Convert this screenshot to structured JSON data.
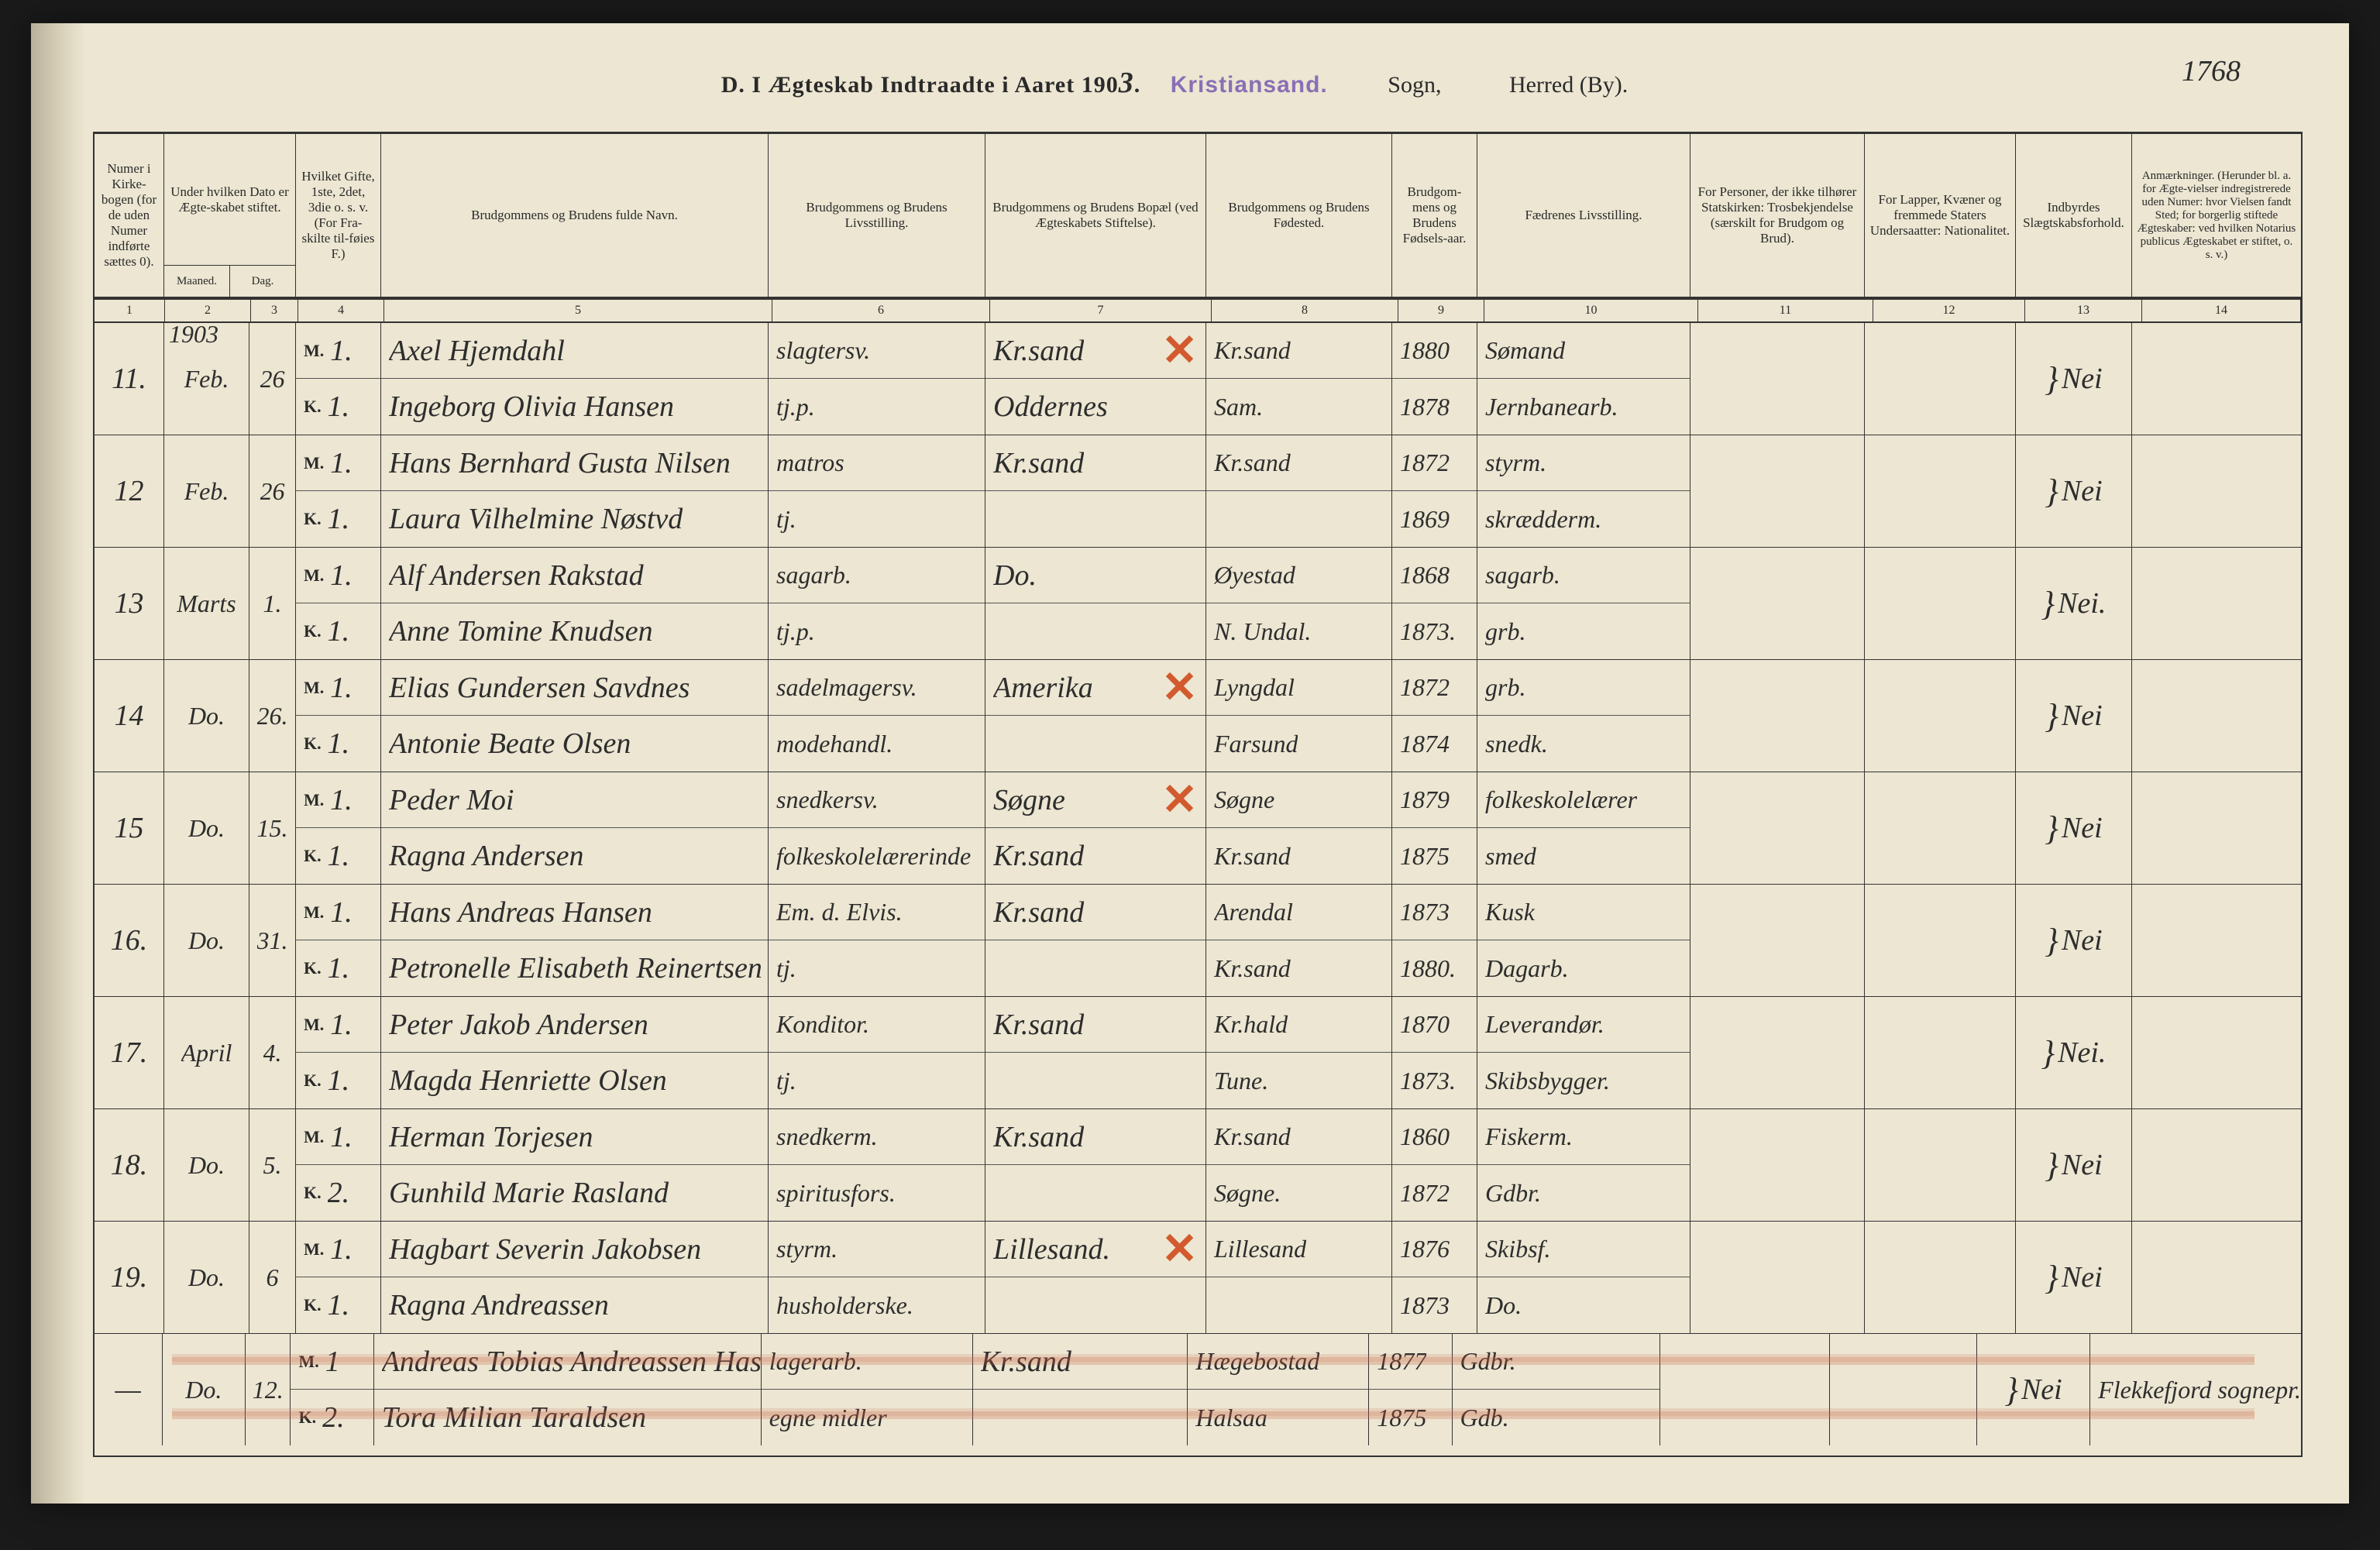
{
  "title": {
    "heading_prefix": "D.  I Ægteskab Indtraadte i Aaret 190",
    "year_digit": "3",
    "stamp": "Kristiansand.",
    "sogn_label": "Sogn,",
    "herred_label": "Herred (By)."
  },
  "page_number": "1768",
  "colors": {
    "paper": "#ece6d2",
    "ink": "#2d2d2d",
    "print": "#2a2a2a",
    "stamp": "#8a6fb5",
    "red": "#d25a2e",
    "rule": "#333333"
  },
  "header": {
    "c1": "Numer i Kirke-bogen (for de uden Numer indførte sættes 0).",
    "c2_3_top": "Under hvilken Dato er Ægte-skabet stiftet.",
    "c2_bot": "Maaned.",
    "c3_bot": "Dag.",
    "c4": "Hvilket Gifte, 1ste, 2det, 3die o. s. v. (For Fra-skilte til-føies F.)",
    "c5": "Brudgommens og Brudens fulde Navn.",
    "c6": "Brudgommens og Brudens Livsstilling.",
    "c7": "Brudgommens og Brudens Bopæl (ved Ægteskabets Stiftelse).",
    "c8": "Brudgommens og Brudens Fødested.",
    "c9": "Brudgom-mens og Brudens Fødsels-aar.",
    "c10": "Fædrenes Livsstilling.",
    "c11": "For Personer, der ikke tilhører Statskirken: Trosbekjendelse (særskilt for Brudgom og Brud).",
    "c12": "For Lapper, Kvæner og fremmede Staters Undersaatter: Nationalitet.",
    "c13": "Indbyrdes Slægtskabsforhold.",
    "c14": "Anmærkninger. (Herunder bl. a. for Ægte-vielser indregistrerede uden Numer: hvor Vielsen fandt Sted; for borgerlig stiftede Ægteskaber: ved hvilken Notarius publicus Ægteskabet er stiftet, o. s. v.)"
  },
  "colnums": [
    "1",
    "2",
    "3",
    "4",
    "5",
    "6",
    "7",
    "8",
    "9",
    "10",
    "11",
    "12",
    "13",
    "14"
  ],
  "year_written": "1903",
  "mk": {
    "m": "M.",
    "k": "K."
  },
  "entries": [
    {
      "no": "11.",
      "month": "Feb.",
      "day": "26",
      "groom": {
        "gifte": "1.",
        "name": "Axel Hjemdahl",
        "occ": "slagtersv.",
        "res": "Kr.sand",
        "born_place": "Kr.sand",
        "born_year": "1880",
        "father": "Sømand"
      },
      "bride": {
        "gifte": "1.",
        "name": "Ingeborg Olivia Hansen",
        "occ": "tj.p.",
        "res": "Oddernes",
        "res_x": true,
        "born_place": "Sam.",
        "born_year": "1878",
        "father": "Jernbanearb."
      },
      "slaegt": "Nei"
    },
    {
      "no": "12",
      "month": "Feb.",
      "day": "26",
      "groom": {
        "gifte": "1.",
        "name": "Hans Bernhard Gusta Nilsen",
        "occ": "matros",
        "res": "Kr.sand",
        "born_place": "Kr.sand",
        "born_year": "1872",
        "father": "styrm."
      },
      "bride": {
        "gifte": "1.",
        "name": "Laura Vilhelmine Nøstvd",
        "occ": "tj.",
        "res": "",
        "born_place": "",
        "born_year": "1869",
        "father": "skrædderm."
      },
      "slaegt": "Nei"
    },
    {
      "no": "13",
      "month": "Marts",
      "day": "1.",
      "groom": {
        "gifte": "1.",
        "name": "Alf Andersen Rakstad",
        "occ": "sagarb.",
        "res": "Do.",
        "born_place": "Øyestad",
        "born_year": "1868",
        "father": "sagarb."
      },
      "bride": {
        "gifte": "1.",
        "name": "Anne Tomine Knudsen",
        "occ": "tj.p.",
        "res": "",
        "born_place": "N. Undal.",
        "born_year": "1873.",
        "father": "grb."
      },
      "slaegt": "Nei."
    },
    {
      "no": "14",
      "month": "Do.",
      "day": "26.",
      "groom": {
        "gifte": "1.",
        "name": "Elias Gundersen Savdnes",
        "occ": "sadelmagersv.",
        "res": "Amerika",
        "res_x": true,
        "born_place": "Lyngdal",
        "born_year": "1872",
        "father": "grb."
      },
      "bride": {
        "gifte": "1.",
        "name": "Antonie Beate Olsen",
        "occ": "modehandl.",
        "res": "",
        "res_x": true,
        "born_place": "Farsund",
        "born_year": "1874",
        "father": "snedk."
      },
      "slaegt": "Nei"
    },
    {
      "no": "15",
      "month": "Do.",
      "day": "15.",
      "groom": {
        "gifte": "1.",
        "name": "Peder Moi",
        "occ": "snedkersv.",
        "res": "Søgne",
        "res_x": true,
        "born_place": "Søgne",
        "born_year": "1879",
        "father": "folkeskolelærer"
      },
      "bride": {
        "gifte": "1.",
        "name": "Ragna Andersen",
        "occ": "folkeskolelærerinde",
        "res": "Kr.sand",
        "born_place": "Kr.sand",
        "born_year": "1875",
        "father": "smed"
      },
      "slaegt": "Nei"
    },
    {
      "no": "16.",
      "month": "Do.",
      "day": "31.",
      "groom": {
        "gifte": "1.",
        "name": "Hans Andreas Hansen",
        "occ": "Em. d. Elvis.",
        "res": "Kr.sand",
        "born_place": "Arendal",
        "born_year": "1873",
        "father": "Kusk"
      },
      "bride": {
        "gifte": "1.",
        "name": "Petronelle Elisabeth Reinertsen",
        "occ": "tj.",
        "res": "",
        "born_place": "Kr.sand",
        "born_year": "1880.",
        "father": "Dagarb."
      },
      "slaegt": "Nei"
    },
    {
      "no": "17.",
      "month": "April",
      "day": "4.",
      "groom": {
        "gifte": "1.",
        "name": "Peter Jakob Andersen",
        "occ": "Konditor.",
        "res": "Kr.sand",
        "born_place": "Kr.hald",
        "born_year": "1870",
        "father": "Leverandør."
      },
      "bride": {
        "gifte": "1.",
        "name": "Magda Henriette Olsen",
        "occ": "tj.",
        "res": "",
        "born_place": "Tune.",
        "born_year": "1873.",
        "father": "Skibsbygger."
      },
      "slaegt": "Nei."
    },
    {
      "no": "18.",
      "month": "Do.",
      "day": "5.",
      "groom": {
        "gifte": "1.",
        "name": "Herman Torjesen",
        "occ": "snedkerm.",
        "res": "Kr.sand",
        "born_place": "Kr.sand",
        "born_year": "1860",
        "father": "Fiskerm."
      },
      "bride": {
        "gifte": "2.",
        "name": "Gunhild Marie Rasland",
        "occ": "spiritusfors.",
        "res": "",
        "born_place": "Søgne.",
        "born_year": "1872",
        "father": "Gdbr."
      },
      "slaegt": "Nei"
    },
    {
      "no": "19.",
      "month": "Do.",
      "day": "6",
      "groom": {
        "gifte": "1.",
        "name": "Hagbart Severin Jakobsen",
        "occ": "styrm.",
        "res": "Lillesand.",
        "res_x": true,
        "born_place": "Lillesand",
        "born_year": "1876",
        "father": "Skibsf."
      },
      "bride": {
        "gifte": "1.",
        "name": "Ragna Andreassen",
        "occ": "husholderske.",
        "res": "",
        "res_x": true,
        "born_place": "",
        "born_year": "1873",
        "father": "Do."
      },
      "slaegt": "Nei"
    },
    {
      "no": "—",
      "month": "Do.",
      "day": "12.",
      "groom": {
        "gifte": "1",
        "name": "Andreas Tobias Andreassen Hasberg",
        "occ": "lagerarb.",
        "res": "Kr.sand",
        "born_place": "Hægebostad",
        "born_year": "1877",
        "father": "Gdbr."
      },
      "bride": {
        "gifte": "2.",
        "name": "Tora Milian Taraldsen",
        "occ": "egne midler",
        "res": "",
        "born_place": "Halsaa",
        "born_year": "1875",
        "father": "Gdb."
      },
      "slaegt": "Nei",
      "remark": "Flekkefjord sognepr.",
      "red_strike": true
    }
  ]
}
